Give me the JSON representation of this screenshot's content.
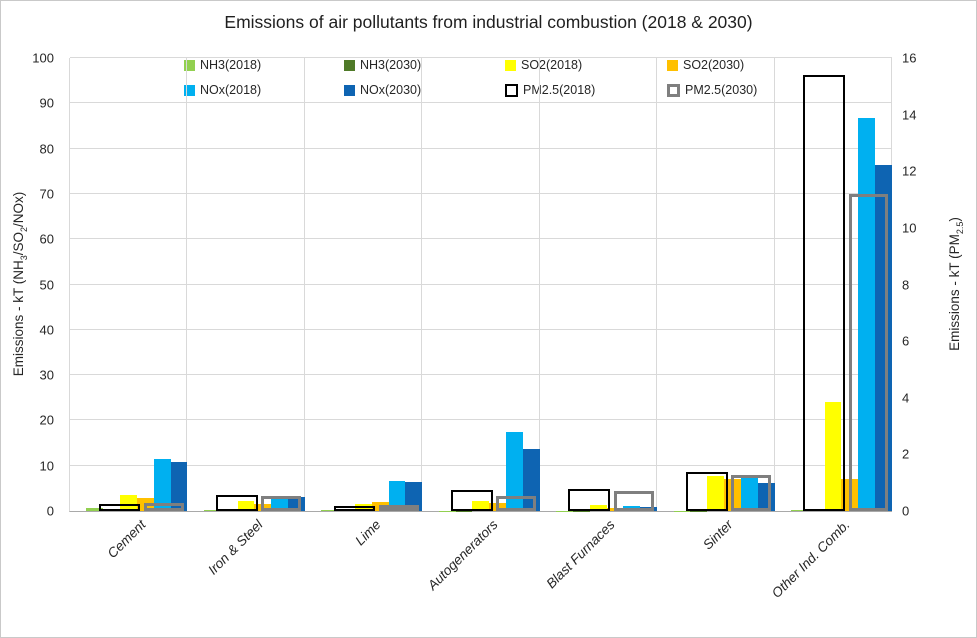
{
  "chart_data": {
    "type": "bar",
    "title": "Emissions of air pollutants from industrial combustion (2018 & 2030)",
    "categories": [
      "Cement",
      "Iron & Steel",
      "Lime",
      "Autogenerators",
      "Blast Furnaces",
      "Sinter",
      "Other Ind. Comb."
    ],
    "left_axis": {
      "title_parts": [
        "Emissions - kT (NH",
        "3",
        "/SO",
        "2",
        "/NOx)"
      ],
      "min": 0,
      "max": 100,
      "ticks": [
        0,
        10,
        20,
        30,
        40,
        50,
        60,
        70,
        80,
        90,
        100
      ]
    },
    "right_axis": {
      "title_parts": [
        "Emissions - kT (PM",
        "2.5",
        ")"
      ],
      "min": 0,
      "max": 16,
      "ticks": [
        0,
        2,
        4,
        6,
        8,
        10,
        12,
        14,
        16
      ]
    },
    "grid": true,
    "legend_position": "top",
    "series": [
      {
        "name": "NH3(2018)",
        "axis": "left",
        "style": "fill",
        "color": "#92D050",
        "values": [
          0.7,
          0.15,
          0.2,
          0.1,
          0.05,
          0.1,
          0.3
        ]
      },
      {
        "name": "NH3(2030)",
        "axis": "left",
        "style": "fill",
        "color": "#4F7A28",
        "values": [
          0.5,
          0.15,
          0.2,
          0.1,
          0.05,
          0.1,
          0.3
        ]
      },
      {
        "name": "SO2(2018)",
        "axis": "left",
        "style": "fill",
        "color": "#FFFF00",
        "values": [
          3.5,
          2.2,
          1.5,
          2.2,
          1.3,
          7.7,
          24.0
        ]
      },
      {
        "name": "SO2(2030)",
        "axis": "left",
        "style": "fill",
        "color": "#FFC000",
        "values": [
          2.8,
          1.6,
          1.9,
          1.8,
          0.6,
          7.0,
          7.0
        ]
      },
      {
        "name": "NOx(2018)",
        "axis": "left",
        "style": "fill",
        "color": "#00B0F0",
        "values": [
          11.4,
          2.9,
          6.6,
          17.5,
          1.0,
          7.3,
          86.7
        ]
      },
      {
        "name": "NOx(2030)",
        "axis": "left",
        "style": "fill",
        "color": "#0E64B2",
        "values": [
          10.8,
          3.1,
          6.3,
          13.7,
          0.9,
          6.2,
          76.4
        ]
      },
      {
        "name": "PM2.5(2018)",
        "axis": "right",
        "style": "outline",
        "color": "#000000",
        "values": [
          0.25,
          0.57,
          0.12,
          0.73,
          0.77,
          1.37,
          15.4
        ]
      },
      {
        "name": "PM2.5(2030)",
        "axis": "right",
        "style": "outline",
        "color": "#7F7F7F",
        "values": [
          0.27,
          0.53,
          0.22,
          0.53,
          0.71,
          1.27,
          11.2
        ]
      }
    ]
  }
}
